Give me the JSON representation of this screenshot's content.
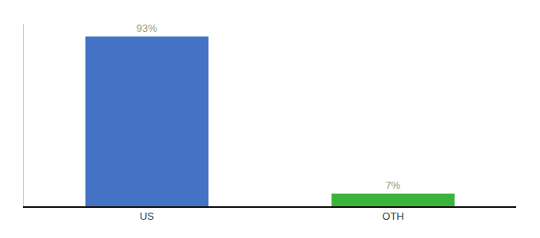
{
  "chart_data": {
    "type": "bar",
    "categories": [
      "US",
      "OTH"
    ],
    "values": [
      93,
      7
    ],
    "value_labels": [
      "93%",
      "7%"
    ],
    "colors": [
      "#4472c4",
      "#3cb33d"
    ],
    "ylim": [
      0,
      100
    ],
    "tick_labels": "x",
    "data_labels": true,
    "grid": false
  }
}
